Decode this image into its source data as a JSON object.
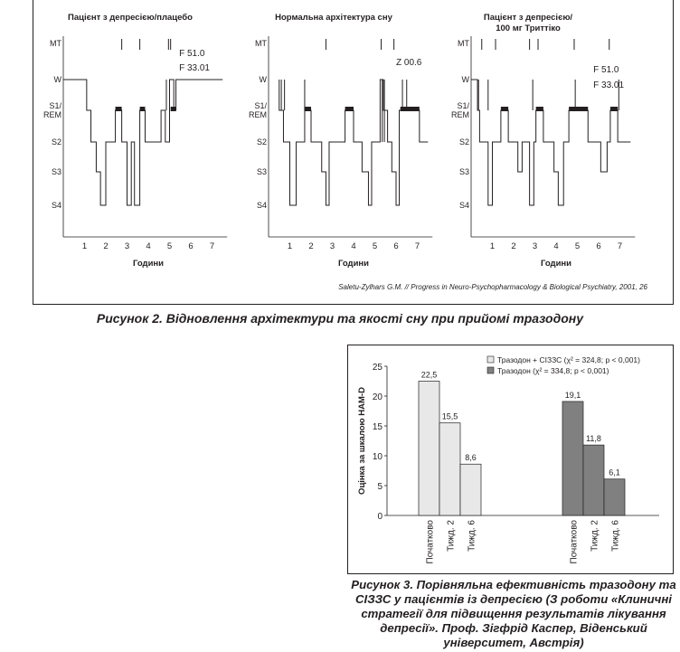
{
  "figure2": {
    "panels": [
      {
        "title": "Пацієнт з депресією/плацебо",
        "annotations": [
          "F 51.0",
          "F 33.01"
        ],
        "mt_marks": [
          2.75,
          3.6,
          4.95,
          5.05
        ]
      },
      {
        "title": "Нормальна архітектура сну",
        "annotations": [
          "Z 00.6"
        ],
        "mt_marks": [
          2.7,
          5.3,
          5.9
        ]
      },
      {
        "title": "Пацієнт з депресією/\n100 мг Триттіко",
        "annotations": [
          "F 51.0",
          "F 33.01"
        ],
        "mt_marks": [
          0.5,
          1.15,
          2.75,
          3.15,
          4.85,
          6.5
        ]
      }
    ],
    "stage_labels": [
      "MT",
      "W",
      "S1/\nREM",
      "S2",
      "S3",
      "S4"
    ],
    "xlabel": "Години",
    "x_ticks": [
      "1",
      "2",
      "3",
      "4",
      "5",
      "6",
      "7"
    ],
    "source": "Saletu-Zylhars G.M. // Progress in Neuro-Psychopharmacology & Biological Psychiatry, 2001, 26",
    "caption": "Рисунок 2. Відновлення архітектури та якості сну при прийомі тразодону"
  },
  "figure3": {
    "chart_data": {
      "type": "bar",
      "ylabel": "Оцінка за шкалою HAM-D",
      "ylim": [
        0,
        25
      ],
      "y_ticks": [
        0,
        5,
        10,
        15,
        20,
        25
      ],
      "categories": [
        "Початково",
        "Тижд. 2",
        "Тижд. 6"
      ],
      "series": [
        {
          "name": "Тразодон + СІЗЗС (χ² = 324,8; p < 0,001)",
          "values": [
            22.5,
            15.5,
            8.6
          ],
          "labels": [
            "22,5",
            "15,5",
            "8,6"
          ],
          "color": "#e8e8e8"
        },
        {
          "name": "Тразодон (χ² = 334,8; p < 0,001)",
          "values": [
            19.1,
            11.8,
            6.1
          ],
          "labels": [
            "19,1",
            "11,8",
            "6,1"
          ],
          "color": "#808080"
        }
      ]
    },
    "caption": "Рисунок 3. Порівняльна ефективність тразодону та СІЗЗС у пацієнтів із депресією (З роботи «Клиничні стратегії для підвищення результатів лікування депресії». Проф. Зігфрід Каспер, Віденський університет, Австрія)"
  }
}
